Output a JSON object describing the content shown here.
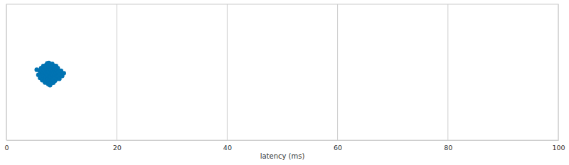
{
  "chart_data": {
    "type": "strip",
    "x_label": "latency (ms)",
    "values": [
      5.5,
      5.8,
      6.0,
      6.1,
      6.2,
      6.3,
      6.3,
      6.4,
      6.5,
      6.5,
      6.6,
      6.6,
      6.7,
      6.7,
      6.8,
      6.8,
      6.9,
      6.9,
      6.9,
      7.0,
      7.0,
      7.0,
      7.1,
      7.1,
      7.1,
      7.2,
      7.2,
      7.2,
      7.3,
      7.3,
      7.3,
      7.3,
      7.4,
      7.4,
      7.4,
      7.4,
      7.5,
      7.5,
      7.5,
      7.5,
      7.6,
      7.6,
      7.6,
      7.6,
      7.7,
      7.7,
      7.7,
      7.7,
      7.8,
      7.8,
      7.8,
      7.8,
      7.9,
      7.9,
      7.9,
      7.9,
      8.0,
      8.0,
      8.0,
      8.0,
      8.1,
      8.1,
      8.1,
      8.1,
      8.2,
      8.2,
      8.2,
      8.2,
      8.3,
      8.3,
      8.3,
      8.3,
      8.4,
      8.4,
      8.4,
      8.5,
      8.5,
      8.5,
      8.6,
      8.6,
      8.6,
      8.7,
      8.7,
      8.7,
      8.8,
      8.8,
      8.9,
      8.9,
      9.0,
      9.0,
      9.1,
      9.1,
      9.2,
      9.3,
      9.3,
      9.4,
      9.5,
      9.6,
      9.7,
      9.9,
      10.1,
      10.4
    ],
    "color": "#0173b2",
    "xlim": [
      0,
      100
    ],
    "xticks": [
      0,
      20,
      40,
      60,
      80,
      100
    ],
    "grid": true
  }
}
